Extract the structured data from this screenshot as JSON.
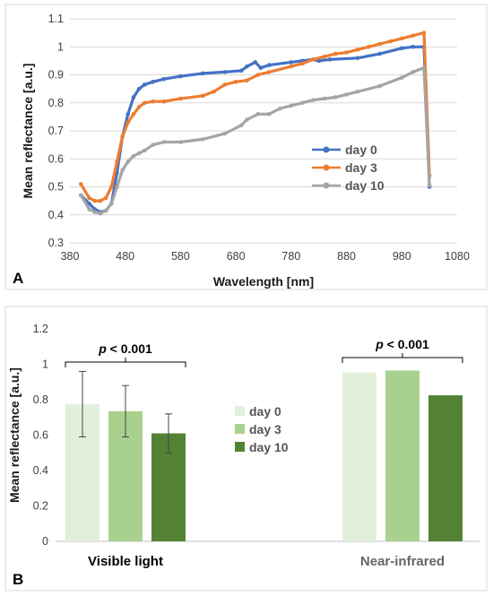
{
  "chart_data": [
    {
      "type": "line",
      "panel_label": "A",
      "xlabel": "Wavelength [nm]",
      "ylabel": "Mean reflectance [a.u.]",
      "xlim": [
        380,
        1080
      ],
      "ylim": [
        0.3,
        1.1
      ],
      "xticks": [
        380,
        480,
        580,
        680,
        780,
        880,
        980,
        1080
      ],
      "yticks": [
        "0.3",
        "0.4",
        "0.5",
        "0.6",
        "0.7",
        "0.8",
        "0.9",
        "1",
        "1.1"
      ],
      "grid": true,
      "legend": "center-right",
      "colors": {
        "day 0": "#4472C4",
        "day 3": "#ED7D31",
        "day 10": "#A5A5A5"
      },
      "series": [
        {
          "name": "day 0",
          "x": [
            400,
            415,
            425,
            435,
            445,
            455,
            465,
            475,
            485,
            495,
            505,
            515,
            530,
            550,
            580,
            620,
            660,
            690,
            700,
            715,
            725,
            740,
            780,
            800,
            820,
            830,
            850,
            900,
            940,
            980,
            1000,
            1020,
            1030
          ],
          "y": [
            0.47,
            0.44,
            0.42,
            0.41,
            0.415,
            0.44,
            0.55,
            0.68,
            0.76,
            0.82,
            0.85,
            0.865,
            0.875,
            0.885,
            0.895,
            0.905,
            0.91,
            0.915,
            0.93,
            0.945,
            0.925,
            0.935,
            0.945,
            0.95,
            0.955,
            0.95,
            0.955,
            0.96,
            0.975,
            0.995,
            1.0,
            1.0,
            0.5
          ]
        },
        {
          "name": "day 3",
          "x": [
            400,
            415,
            425,
            435,
            445,
            455,
            465,
            475,
            485,
            495,
            505,
            515,
            530,
            550,
            580,
            620,
            640,
            660,
            680,
            700,
            720,
            740,
            780,
            800,
            820,
            840,
            860,
            880,
            900,
            920,
            940,
            960,
            980,
            1000,
            1020,
            1030
          ],
          "y": [
            0.51,
            0.46,
            0.45,
            0.45,
            0.46,
            0.5,
            0.59,
            0.68,
            0.73,
            0.76,
            0.785,
            0.8,
            0.805,
            0.805,
            0.815,
            0.825,
            0.84,
            0.865,
            0.875,
            0.88,
            0.9,
            0.91,
            0.93,
            0.94,
            0.955,
            0.965,
            0.975,
            0.98,
            0.99,
            1.0,
            1.01,
            1.02,
            1.03,
            1.04,
            1.05,
            0.54
          ]
        },
        {
          "name": "day 10",
          "x": [
            400,
            415,
            425,
            435,
            445,
            455,
            465,
            475,
            485,
            495,
            505,
            515,
            530,
            550,
            580,
            620,
            660,
            690,
            700,
            720,
            740,
            760,
            780,
            800,
            820,
            840,
            860,
            880,
            900,
            940,
            980,
            1000,
            1020,
            1030
          ],
          "y": [
            0.47,
            0.42,
            0.41,
            0.405,
            0.415,
            0.44,
            0.5,
            0.56,
            0.59,
            0.61,
            0.62,
            0.63,
            0.65,
            0.66,
            0.66,
            0.67,
            0.69,
            0.72,
            0.74,
            0.76,
            0.76,
            0.78,
            0.79,
            0.8,
            0.81,
            0.815,
            0.82,
            0.83,
            0.84,
            0.86,
            0.89,
            0.91,
            0.925,
            0.505
          ]
        }
      ]
    },
    {
      "type": "bar",
      "panel_label": "B",
      "ylabel": "Mean reflectance [a.u.]",
      "ylim": [
        0,
        1.2
      ],
      "yticks": [
        "0",
        "0.2",
        "0.4",
        "0.6",
        "0.8",
        "1",
        "1.2"
      ],
      "grid": false,
      "legend": "center",
      "categories": [
        "Visible light",
        "Near-infrared"
      ],
      "colors": {
        "day 0": "#E2EFDA",
        "day 3": "#A9D18E",
        "day 10": "#548235"
      },
      "series": [
        {
          "name": "day 0",
          "values": [
            0.775,
            0.955
          ],
          "error": [
            0.185,
            null
          ]
        },
        {
          "name": "day 3",
          "values": [
            0.735,
            0.965
          ],
          "error": [
            0.145,
            null
          ]
        },
        {
          "name": "day 10",
          "values": [
            0.61,
            0.825
          ],
          "error": [
            0.11,
            null
          ]
        }
      ],
      "annotations": [
        {
          "text": "p < 0.001",
          "category": "Visible light"
        },
        {
          "text": "p < 0.001",
          "category": "Near-infrared"
        }
      ]
    }
  ]
}
